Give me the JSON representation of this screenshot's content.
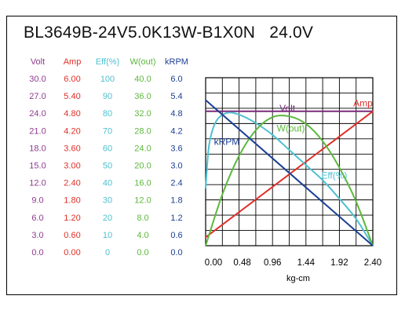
{
  "chart_data": {
    "type": "line",
    "title": "BL3649B-24V5.0K13W-B1X0N",
    "subtitle": "24.0V",
    "xlabel": "kg-cm",
    "x_ticks": [
      "0.00",
      "0.48",
      "0.96",
      "1.44",
      "1.92",
      "2.40"
    ],
    "xlim": [
      0,
      2.4
    ],
    "grid": true,
    "scales": [
      {
        "name": "Volt",
        "color": "#8e3b8f",
        "ticks": [
          "30.0",
          "27.0",
          "24.0",
          "21.0",
          "18.0",
          "15.0",
          "12.0",
          "9.0",
          "6.0",
          "3.0",
          "0.0"
        ],
        "max": 30
      },
      {
        "name": "Amp",
        "color": "#e03028",
        "ticks": [
          "6.00",
          "5.40",
          "4.80",
          "4.20",
          "3.60",
          "3.00",
          "2.40",
          "1.80",
          "1.20",
          "0.60",
          "0.00"
        ],
        "max": 6
      },
      {
        "name": "Eff(%)",
        "color": "#4fc0d0",
        "ticks": [
          "100",
          "90",
          "80",
          "70",
          "60",
          "50",
          "40",
          "30",
          "20",
          "10",
          "0"
        ],
        "max": 100
      },
      {
        "name": "W(out)",
        "color": "#5cb83c",
        "ticks": [
          "40.0",
          "36.0",
          "32.0",
          "28.0",
          "24.0",
          "20.0",
          "16.0",
          "12.0",
          "8.0",
          "4.0",
          "0.0"
        ],
        "max": 40
      },
      {
        "name": "kRPM",
        "color": "#1c3f94",
        "ticks": [
          "6.0",
          "5.4",
          "4.8",
          "4.2",
          "3.6",
          "3.0",
          "2.4",
          "1.8",
          "1.2",
          "0.6",
          "0.0"
        ],
        "max": 6
      }
    ],
    "series": [
      {
        "name": "Volt",
        "color": "#7b2a7b",
        "x": [
          0,
          2.4
        ],
        "values": [
          24.0,
          24.0
        ]
      },
      {
        "name": "Amp",
        "color": "#e03028",
        "x": [
          0,
          0.48,
          0.96,
          1.44,
          1.92,
          2.4
        ],
        "values": [
          0.3,
          1.2,
          2.1,
          3.0,
          3.9,
          4.8
        ]
      },
      {
        "name": "Eff(%)",
        "color": "#4fc0d0",
        "x": [
          0,
          0.05,
          0.15,
          0.3,
          0.48,
          0.72,
          0.96,
          1.2,
          1.44,
          1.68,
          1.92,
          2.16,
          2.4
        ],
        "values": [
          34,
          60,
          74,
          79,
          78,
          73,
          66,
          57,
          48,
          39,
          28,
          16,
          0
        ]
      },
      {
        "name": "W(out)",
        "color": "#5cb83c",
        "x": [
          0,
          0.24,
          0.48,
          0.72,
          0.96,
          1.2,
          1.44,
          1.68,
          1.92,
          2.16,
          2.4
        ],
        "values": [
          0,
          12.2,
          21.4,
          27.5,
          30.6,
          30.8,
          29.0,
          24.9,
          18.6,
          10.5,
          0
        ]
      },
      {
        "name": "kRPM",
        "color": "#1c3f94",
        "x": [
          0,
          2.4
        ],
        "values": [
          5.2,
          0
        ]
      }
    ],
    "annotations": [
      {
        "text": "Volt",
        "x": 1.06,
        "y_frac": 0.8
      },
      {
        "text": "Amp",
        "x": 2.12,
        "y_frac": 0.83
      },
      {
        "text": "W(out)",
        "x": 1.02,
        "y_frac": 0.68
      },
      {
        "text": "kRPM",
        "x": 0.12,
        "y_frac": 0.6
      },
      {
        "text": "Eff(%)",
        "x": 1.66,
        "y_frac": 0.4
      }
    ]
  }
}
